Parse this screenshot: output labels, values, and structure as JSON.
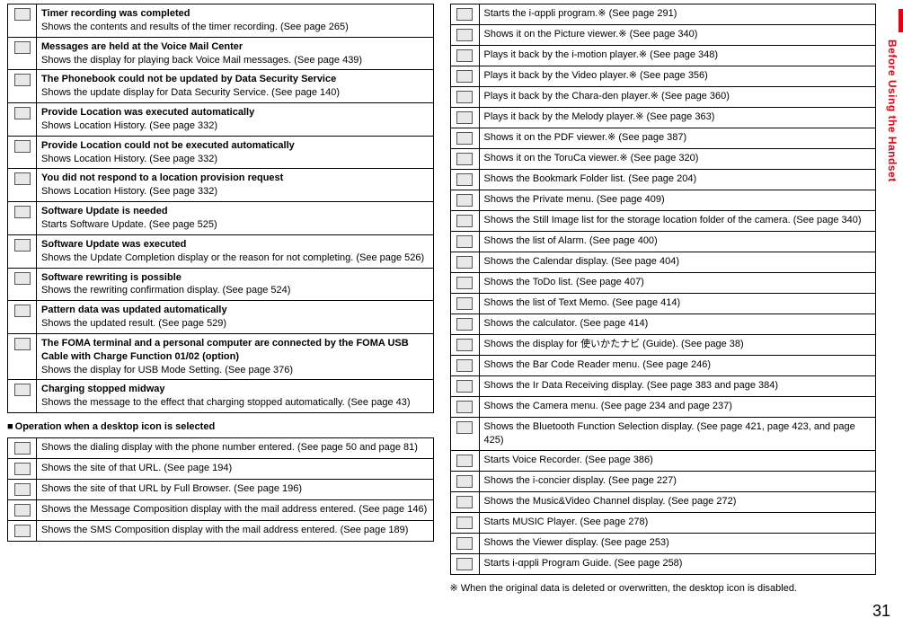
{
  "pageNumber": "31",
  "sideTab": "Before Using the Handset",
  "leftTop": [
    {
      "title": "Timer recording was completed",
      "body": "Shows the contents and results of the timer recording. (See page 265)"
    },
    {
      "title": "Messages are held at the Voice Mail Center",
      "body": "Shows the display for playing back Voice Mail messages. (See page 439)"
    },
    {
      "title": "The Phonebook could not be updated by Data Security Service",
      "body": "Shows the update display for Data Security Service. (See page 140)"
    },
    {
      "title": "Provide Location was executed automatically",
      "body": "Shows Location History. (See page 332)"
    },
    {
      "title": "Provide Location could not be executed automatically",
      "body": "Shows Location History. (See page 332)"
    },
    {
      "title": "You did not respond to a location provision request",
      "body": "Shows Location History. (See page 332)"
    },
    {
      "title": "Software Update is needed",
      "body": "Starts Software Update. (See page 525)"
    },
    {
      "title": "Software Update was executed",
      "body": "Shows the Update Completion display or the reason for not completing. (See page 526)"
    },
    {
      "title": "Software rewriting is possible",
      "body": "Shows the rewriting confirmation display. (See page 524)"
    },
    {
      "title": "Pattern data was updated automatically",
      "body": "Shows the updated result. (See page 529)"
    },
    {
      "title": "The FOMA terminal and a personal computer are connected by the FOMA USB Cable with Charge Function 01/02 (option)",
      "body": "Shows the display for USB Mode Setting. (See page 376)"
    },
    {
      "title": "Charging stopped midway",
      "body": "Shows the message to the effect that charging stopped automatically. (See page 43)"
    }
  ],
  "subsectionHeading": "Operation when a desktop icon is selected",
  "leftBottom": [
    {
      "body": "Shows the dialing display with the phone number entered. (See page 50 and page 81)"
    },
    {
      "body": "Shows the site of that URL. (See page 194)"
    },
    {
      "body": "Shows the site of that URL by Full Browser. (See page 196)"
    },
    {
      "body": "Shows the Message Composition display with the mail address entered. (See page 146)"
    },
    {
      "body": "Shows the SMS Composition display with the mail address entered. (See page 189)"
    }
  ],
  "right": [
    {
      "body": "Starts the i-αppli program.※ (See page 291)"
    },
    {
      "body": "Shows it on the Picture viewer.※ (See page 340)"
    },
    {
      "body": "Plays it back by the i-motion player.※ (See page 348)"
    },
    {
      "body": "Plays it back by the Video player.※ (See page 356)"
    },
    {
      "body": "Plays it back by the Chara-den player.※ (See page 360)"
    },
    {
      "body": "Plays it back by the Melody player.※ (See page 363)"
    },
    {
      "body": "Shows it on the PDF viewer.※ (See page 387)"
    },
    {
      "body": "Shows it on the ToruCa viewer.※ (See page 320)"
    },
    {
      "body": "Shows the Bookmark Folder list. (See page 204)"
    },
    {
      "body": "Shows the Private menu. (See page 409)"
    },
    {
      "body": "Shows the Still Image list for the storage location folder of the camera. (See page 340)"
    },
    {
      "body": "Shows the list of Alarm. (See page 400)"
    },
    {
      "body": "Shows the Calendar display. (See page 404)"
    },
    {
      "body": "Shows the ToDo list. (See page 407)"
    },
    {
      "body": "Shows the list of Text Memo. (See page 414)"
    },
    {
      "body": "Shows the calculator. (See page 414)"
    },
    {
      "body": "Shows the display for 使いかたナビ (Guide). (See page 38)"
    },
    {
      "body": "Shows the Bar Code Reader menu. (See page 246)"
    },
    {
      "body": "Shows the Ir Data Receiving display. (See page 383 and page 384)"
    },
    {
      "body": "Shows the Camera menu. (See page 234 and page 237)"
    },
    {
      "body": "Shows the Bluetooth Function Selection display. (See page 421, page 423, and page 425)"
    },
    {
      "body": "Starts Voice Recorder. (See page 386)"
    },
    {
      "body": "Shows the i-concier display. (See page 227)"
    },
    {
      "body": "Shows the Music&Video Channel display. (See page 272)"
    },
    {
      "body": "Starts MUSIC Player. (See page 278)"
    },
    {
      "body": "Shows the Viewer display. (See page 253)"
    },
    {
      "body": "Starts i-αppli Program Guide. (See page 258)"
    }
  ],
  "footnote": "※ When the original data is deleted or overwritten, the desktop icon is disabled."
}
